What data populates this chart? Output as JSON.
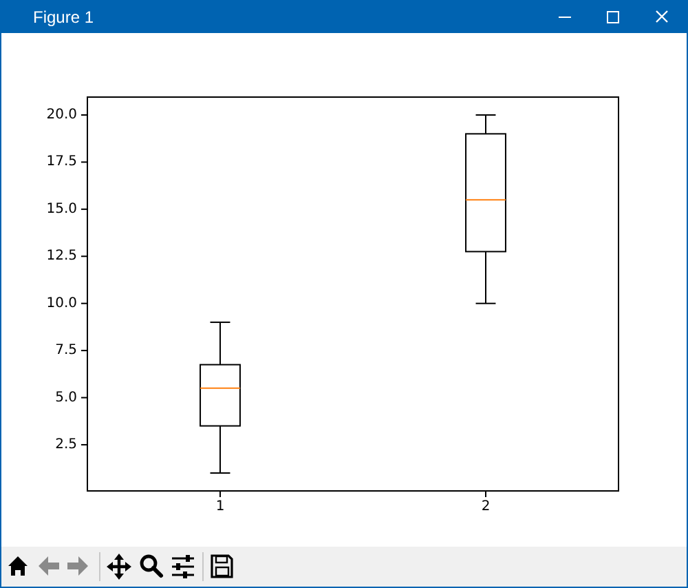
{
  "chart_data": {
    "type": "box",
    "title": "Figure 1",
    "categories": [
      "1",
      "2"
    ],
    "color": "#000000",
    "boxes": [
      {
        "low": 1,
        "q1": 3.5,
        "median": 5.5,
        "q3": 6.75,
        "high": 9
      },
      {
        "low": 10,
        "q1": 12.75,
        "median": 15.5,
        "q3": 19,
        "high": 20
      }
    ],
    "ylim": [
      0.05,
      20.95
    ],
    "yticks": [
      2.5,
      {
        "value": 5,
        "label": "5.0"
      },
      7.5,
      {
        "value": 10,
        "label": "10.0"
      },
      12.5,
      {
        "value": 15,
        "label": "15.0"
      },
      17.5,
      {
        "value": 20,
        "label": "20.0"
      }
    ]
  }
}
